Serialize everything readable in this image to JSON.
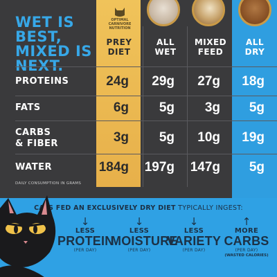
{
  "headline": {
    "line1": "WET IS",
    "line2": "BEST,",
    "line3": "MIXED IS",
    "line4": "NEXT."
  },
  "seal": {
    "line1": "OPTIMAL",
    "line2": "CARNIVORE",
    "line3": "NUTRITION"
  },
  "columns": {
    "prey": {
      "line1": "PREY",
      "line2": "DIET"
    },
    "wet": {
      "line1": "ALL",
      "line2": "WET"
    },
    "mixed": {
      "line1": "MIXED",
      "line2": "FEED"
    },
    "dry": {
      "line1": "ALL",
      "line2": "DRY"
    }
  },
  "rows": {
    "proteins": {
      "label1": "PROTEINS",
      "label2": "",
      "prey": "24g",
      "wet": "29g",
      "mixed": "27g",
      "dry": "18g"
    },
    "fats": {
      "label1": "FATS",
      "label2": "",
      "prey": "6g",
      "wet": "5g",
      "mixed": "3g",
      "dry": "5g"
    },
    "carbs": {
      "label1": "CARBS",
      "label2": "& FIBER",
      "prey": "3g",
      "wet": "5g",
      "mixed": "10g",
      "dry": "19g"
    },
    "water": {
      "label1": "WATER",
      "label2": "",
      "prey": "184g",
      "wet": "197g",
      "mixed": "147g",
      "dry": "5g"
    }
  },
  "footnote": "DAILY CONSUMPTION IN GRAMS",
  "bottom": {
    "title_bold": "CATS FED AN EXCLUSIVELY DRY DIET",
    "title_rest": " TYPICALLY INGEST:",
    "stats": [
      {
        "arrow": "↓",
        "small": "LESS",
        "big": "PROTEIN",
        "per": "(PER DAY)",
        "wasted": ""
      },
      {
        "arrow": "↓",
        "small": "LESS",
        "big": "MOISTURE",
        "per": "(PER DAY)",
        "wasted": ""
      },
      {
        "arrow": "↓",
        "small": "LESS",
        "big": "VARIETY",
        "per": "(PER DAY)",
        "wasted": ""
      },
      {
        "arrow": "↑",
        "small": "MORE",
        "big": "CARBS",
        "per": "(PER DAY)",
        "wasted": "(WASTED CALORIES)"
      }
    ]
  },
  "colors": {
    "accent_blue": "#2fa1e4",
    "prey_gold": "#e9b24c",
    "background": "#3a3a3c"
  },
  "chart_data": {
    "type": "table",
    "title": "WET IS BEST, MIXED IS NEXT.",
    "columns": [
      "PREY DIET",
      "ALL WET",
      "MIXED FEED",
      "ALL DRY"
    ],
    "rows": [
      "PROTEINS",
      "FATS",
      "CARBS & FIBER",
      "WATER"
    ],
    "values": [
      [
        "24g",
        "29g",
        "27g",
        "18g"
      ],
      [
        "6g",
        "5g",
        "3g",
        "5g"
      ],
      [
        "3g",
        "5g",
        "10g",
        "19g"
      ],
      [
        "184g",
        "197g",
        "147g",
        "5g"
      ]
    ],
    "note": "DAILY CONSUMPTION IN GRAMS"
  }
}
